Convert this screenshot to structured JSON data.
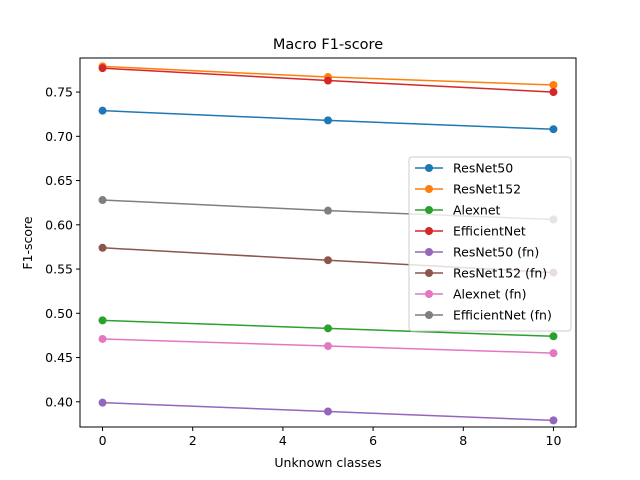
{
  "chart_data": {
    "type": "line",
    "title": "Macro F1-score",
    "xlabel": "Unknown classes",
    "ylabel": "F1-score",
    "x": [
      0,
      5,
      10
    ],
    "xlim": [
      -0.5,
      10.5
    ],
    "ylim": [
      0.3715,
      0.7885
    ],
    "xticks": [
      0,
      2,
      4,
      6,
      8,
      10
    ],
    "xtick_labels": [
      "0",
      "2",
      "4",
      "6",
      "8",
      "10"
    ],
    "yticks": [
      0.4,
      0.45,
      0.5,
      0.55,
      0.6,
      0.65,
      0.7,
      0.75
    ],
    "ytick_labels": [
      "0.40",
      "0.45",
      "0.50",
      "0.55",
      "0.60",
      "0.65",
      "0.70",
      "0.75"
    ],
    "grid": false,
    "legend_position": "center-right",
    "series": [
      {
        "name": "ResNet50",
        "color": "#1f77b4",
        "values": [
          0.729,
          0.718,
          0.708
        ]
      },
      {
        "name": "ResNet152",
        "color": "#ff7f0e",
        "values": [
          0.779,
          0.767,
          0.758
        ]
      },
      {
        "name": "Alexnet",
        "color": "#2ca02c",
        "values": [
          0.492,
          0.483,
          0.474
        ]
      },
      {
        "name": "EfficientNet",
        "color": "#d62728",
        "values": [
          0.777,
          0.763,
          0.75
        ]
      },
      {
        "name": "ResNet50 (fn)",
        "color": "#9467bd",
        "values": [
          0.399,
          0.389,
          0.379
        ]
      },
      {
        "name": "ResNet152 (fn)",
        "color": "#8c564b",
        "values": [
          0.574,
          0.56,
          0.546
        ]
      },
      {
        "name": "Alexnet (fn)",
        "color": "#e377c2",
        "values": [
          0.471,
          0.463,
          0.455
        ]
      },
      {
        "name": "EfficientNet (fn)",
        "color": "#7f7f7f",
        "values": [
          0.628,
          0.616,
          0.606
        ]
      }
    ]
  }
}
